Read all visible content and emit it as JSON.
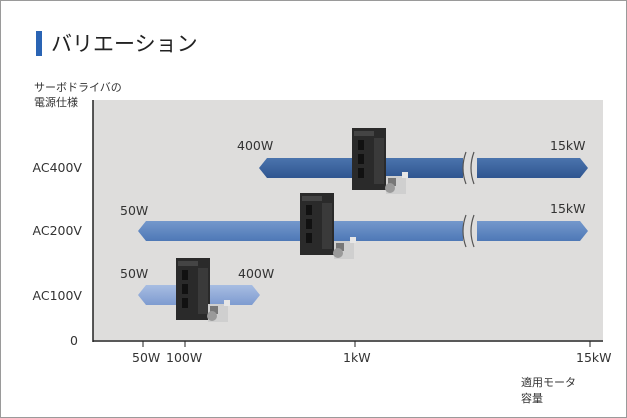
{
  "heading": {
    "title": "バリエーション"
  },
  "axes": {
    "y_title_line1": "サーボドライバの",
    "y_title_line2": "電源仕様",
    "y_ticks": [
      "AC400V",
      "AC200V",
      "AC100V",
      "0"
    ],
    "x_ticks": [
      "50W",
      "100W",
      "1kW",
      "15kW"
    ],
    "x_title_line1": "適用モータ",
    "x_title_line2": "容量"
  },
  "bars": [
    {
      "voltage": "AC400V",
      "from": "400W",
      "to": "15kW",
      "color": "#365f9c"
    },
    {
      "voltage": "AC200V",
      "from": "50W",
      "to": "15kW",
      "color": "#5e86c0"
    },
    {
      "voltage": "AC100V",
      "from": "50W",
      "to": "400W",
      "color": "#8fa9d6"
    }
  ],
  "colors": {
    "accent": "#2a64b4",
    "panel": "#dedddc",
    "axis": "#222222",
    "drive_body": "#2a2a2a",
    "motor": "#d9d9d9"
  },
  "icons": [
    "servo-drive-icon",
    "servo-motor-icon",
    "axis-break-icon"
  ]
}
